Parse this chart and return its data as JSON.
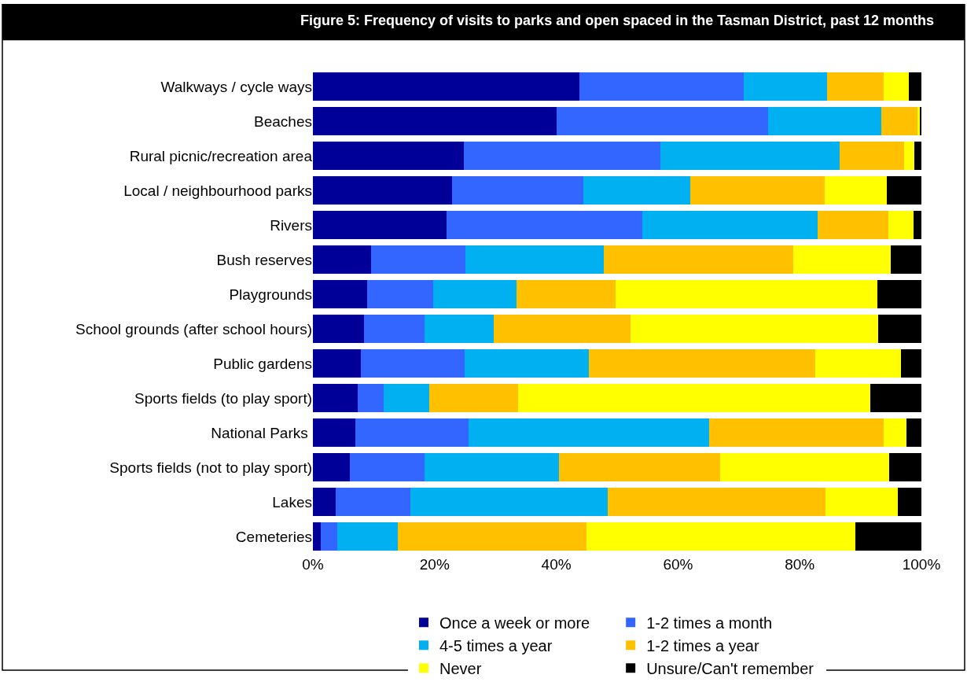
{
  "chart_data": {
    "type": "bar",
    "orientation": "horizontal",
    "stacked": true,
    "title": "Figure 5: Frequency of visits to parks and open spaced in the Tasman District, past 12 months",
    "categories": [
      "Walkways / cycle ways",
      "Beaches",
      "Rural picnic/recreation area",
      "Local / neighbourhood parks",
      "Rivers",
      "Bush reserves",
      "Playgrounds",
      "School grounds (after school hours)",
      "Public gardens",
      "Sports fields (to play sport)",
      "National Parks ",
      "Sports fields (not to play sport)",
      "Lakes",
      "Cemeteries"
    ],
    "series": [
      {
        "name": "Once a week or more",
        "color": "#000099",
        "values": [
          43.8,
          40.1,
          24.8,
          22.9,
          22.0,
          9.6,
          8.9,
          8.4,
          7.9,
          7.4,
          7.0,
          6.1,
          3.7,
          1.3
        ]
      },
      {
        "name": "1-2 times a month",
        "color": "#3366ff",
        "values": [
          27.0,
          34.7,
          32.3,
          21.5,
          32.1,
          15.5,
          10.9,
          9.9,
          17.0,
          4.2,
          18.6,
          12.2,
          12.3,
          2.7
        ]
      },
      {
        "name": "4-5 times a year",
        "color": "#00b0f0",
        "values": [
          13.7,
          18.6,
          29.5,
          17.6,
          28.8,
          22.7,
          13.7,
          11.4,
          20.4,
          7.5,
          39.5,
          22.1,
          32.4,
          10.0
        ]
      },
      {
        "name": "1-2 times a year",
        "color": "#ffc000",
        "values": [
          9.3,
          6.0,
          10.6,
          22.1,
          11.7,
          31.1,
          16.2,
          22.5,
          37.3,
          14.6,
          28.7,
          26.5,
          35.8,
          31.0
        ]
      },
      {
        "name": "Never",
        "color": "#ffff00",
        "values": [
          4.1,
          0.3,
          1.6,
          10.2,
          4.1,
          16.1,
          43.1,
          40.7,
          14.0,
          57.9,
          3.7,
          27.8,
          11.9,
          44.1
        ]
      },
      {
        "name": "Unsure/Can't remember",
        "color": "#000000",
        "values": [
          2.1,
          0.3,
          1.2,
          5.7,
          1.3,
          5.0,
          7.2,
          7.1,
          3.4,
          8.4,
          2.5,
          5.3,
          3.9,
          10.9
        ]
      }
    ],
    "xlim": [
      0,
      100
    ],
    "xticks": [
      {
        "value": 0,
        "label": "0%"
      },
      {
        "value": 20,
        "label": "20%"
      },
      {
        "value": 40,
        "label": "40%"
      },
      {
        "value": 60,
        "label": "60%"
      },
      {
        "value": 80,
        "label": "80%"
      },
      {
        "value": 100,
        "label": "100%"
      }
    ],
    "grid": false,
    "legend": "bottom"
  }
}
